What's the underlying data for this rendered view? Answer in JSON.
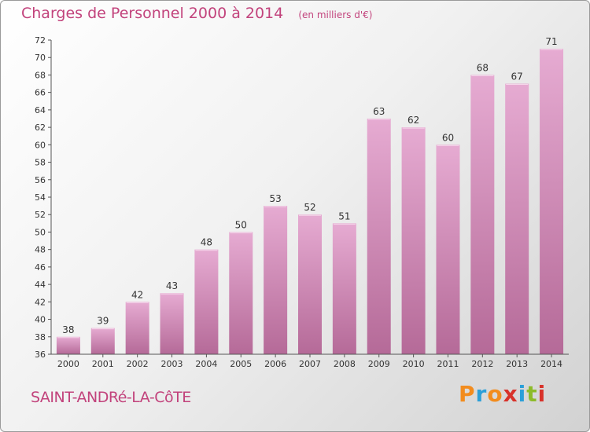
{
  "header": {
    "title": "Charges de Personnel 2000 à 2014",
    "subtitle": "(en milliers d'€)"
  },
  "footer": {
    "commune": "SAINT-ANDRé-LA-CôTE",
    "logo_text": "Proxiti"
  },
  "colors": {
    "title": "#c2437c",
    "bar_top": "#e6abd2",
    "bar_bottom": "#b56a98",
    "axis": "#555555",
    "grid": "#d8d8d8"
  },
  "chart_data": {
    "type": "bar",
    "title": "Charges de Personnel 2000 à 2014",
    "subtitle": "(en milliers d'€)",
    "xlabel": "",
    "ylabel": "",
    "categories": [
      "2000",
      "2001",
      "2002",
      "2003",
      "2004",
      "2005",
      "2006",
      "2007",
      "2008",
      "2009",
      "2010",
      "2011",
      "2012",
      "2013",
      "2014"
    ],
    "values": [
      38,
      39,
      42,
      43,
      48,
      50,
      53,
      52,
      51,
      63,
      62,
      60,
      68,
      67,
      71
    ],
    "ylim": [
      36,
      72
    ],
    "yticks": [
      36,
      38,
      40,
      42,
      44,
      46,
      48,
      50,
      52,
      54,
      56,
      58,
      60,
      62,
      64,
      66,
      68,
      70,
      72
    ],
    "data_labels": true,
    "grid": false
  }
}
